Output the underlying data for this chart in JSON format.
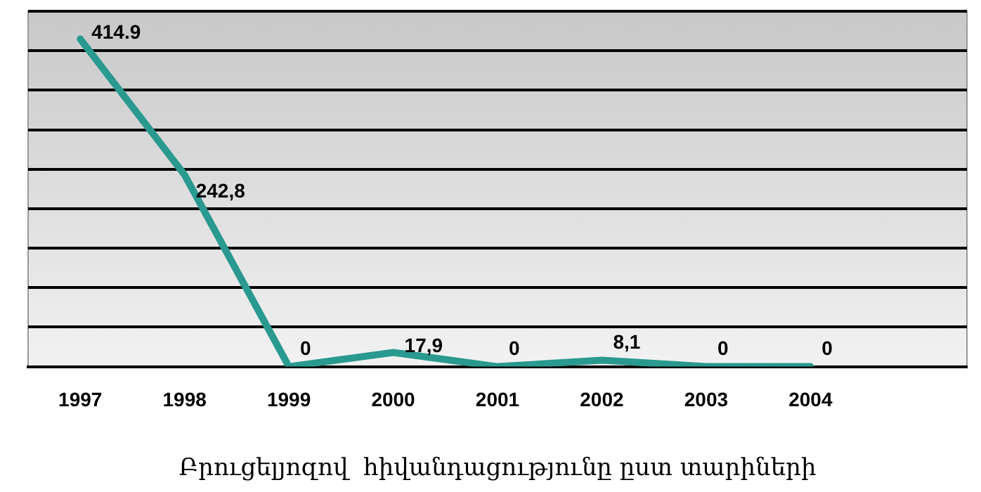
{
  "chart_data": {
    "type": "line",
    "title": "Բրուցելյոզով  հիվանդացությունը ըստ տարիների",
    "categories": [
      "1997",
      "1998",
      "1999",
      "2000",
      "2001",
      "2002",
      "2003",
      "2004",
      null
    ],
    "series": [
      {
        "color": "#2a9990",
        "values": [
          414.9,
          242.8,
          0,
          17.9,
          0,
          8.1,
          0,
          0,
          null
        ],
        "value_labels": [
          "414.9",
          "242,8",
          "0",
          "17,9",
          "0",
          "8,1",
          "0",
          "0",
          null
        ]
      }
    ],
    "ylim": [
      0,
      450
    ],
    "yticks": [
      {
        "value": 0,
        "label": null
      },
      {
        "value": 50,
        "label": null
      },
      {
        "value": 100,
        "label": null
      },
      {
        "value": 150,
        "label": null
      },
      {
        "value": 200,
        "label": null
      },
      {
        "value": 250,
        "label": null
      },
      {
        "value": 300,
        "label": null
      },
      {
        "value": 350,
        "label": null
      },
      {
        "value": 400,
        "label": null
      },
      {
        "value": 450,
        "label": null
      }
    ],
    "tick_labels": "x",
    "grid": "y",
    "legend": false,
    "marker": "none",
    "line_style": "solid"
  }
}
